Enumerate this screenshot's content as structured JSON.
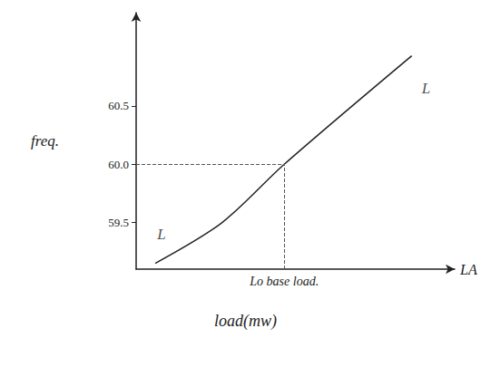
{
  "chart_data": {
    "type": "line",
    "x_label": "load(mw)",
    "y_label": "freq.",
    "x_axis_end_label": "LA",
    "x": [
      6,
      27,
      46.5,
      86.5
    ],
    "values": [
      59.15,
      59.5,
      60.0,
      60.93
    ],
    "color": "#222222",
    "xlim": [
      0,
      100
    ],
    "ylim": [
      59.1,
      61.3
    ],
    "yticks": [
      59.5,
      {
        "value": 60,
        "label": "60.0"
      },
      60.5
    ],
    "tick_labels": "y",
    "grid": false,
    "reference": {
      "x": 46.5,
      "y": 60,
      "label": "Lo base load.",
      "line_style": "dashed"
    },
    "annotations": [
      {
        "text": "L",
        "x": 8,
        "y": 59.4
      },
      {
        "text": "L",
        "x": 91,
        "y": 60.65
      }
    ]
  }
}
